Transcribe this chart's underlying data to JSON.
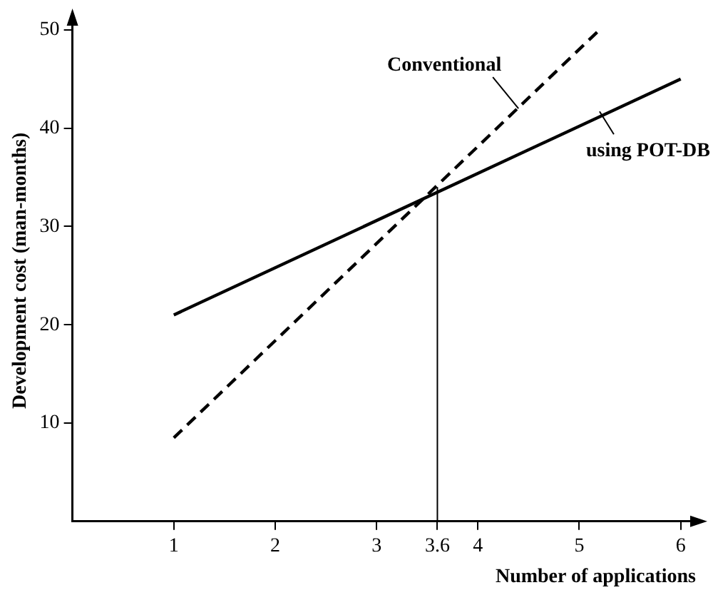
{
  "chart_data": {
    "type": "line",
    "xlabel": "Number of applications",
    "ylabel": "Development cost (man-months)",
    "xlim": [
      0,
      6.15
    ],
    "ylim": [
      0,
      51
    ],
    "xticks": [
      1,
      2,
      3,
      3.6,
      4,
      5,
      6
    ],
    "yticks": [
      10,
      20,
      30,
      40,
      50
    ],
    "grid": false,
    "legend": false,
    "marker": "none",
    "series": [
      {
        "x": [
          1,
          5.2
        ],
        "values": [
          8.5,
          50
        ],
        "color": "#000000",
        "line_style": "dashed"
      },
      {
        "x": [
          1,
          6
        ],
        "values": [
          21,
          45
        ],
        "color": "#000000",
        "line_style": "solid"
      },
      {
        "x": [
          3.6,
          3.6
        ],
        "values": [
          0,
          34
        ],
        "color": "#000000",
        "line_style": "solid"
      }
    ],
    "annotations": [
      {
        "text": "Conventional",
        "x": 4.4,
        "y": 42
      },
      {
        "text": "using POT-DB",
        "x": 5.2,
        "y": 41.7
      }
    ]
  }
}
